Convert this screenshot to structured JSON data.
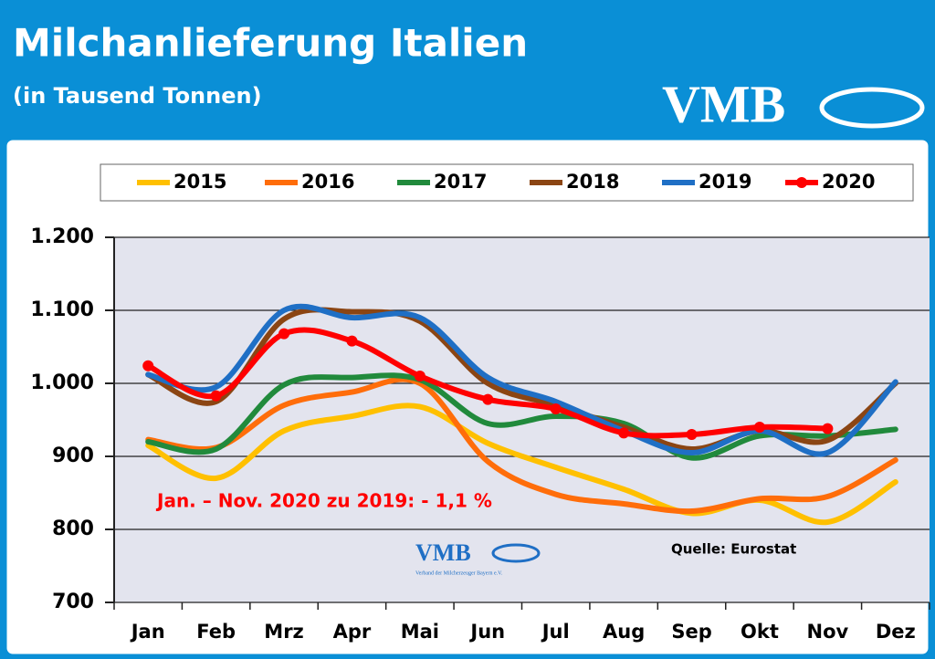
{
  "chart_data": {
    "type": "line",
    "title": "Milchanlieferung Italien",
    "subtitle": "(in Tausend Tonnen)",
    "logo_text": "VMB",
    "logo_subtext": "Verband der Milcherzeuger Bayern e.V.",
    "annotation": "Jan. – Nov. 2020 zu 2019: - 1,1 %",
    "source": "Quelle: Eurostat",
    "categories": [
      "Jan",
      "Feb",
      "Mrz",
      "Apr",
      "Mai",
      "Jun",
      "Jul",
      "Aug",
      "Sep",
      "Okt",
      "Nov",
      "Dez"
    ],
    "series": [
      {
        "name": "2015",
        "color": "#ffc000",
        "values": [
          915,
          870,
          935,
          955,
          968,
          918,
          885,
          855,
          822,
          840,
          810,
          865
        ]
      },
      {
        "name": "2016",
        "color": "#ff6d0a",
        "values": [
          923,
          912,
          970,
          988,
          1000,
          893,
          848,
          835,
          825,
          842,
          845,
          895
        ]
      },
      {
        "name": "2017",
        "color": "#218a3c",
        "values": [
          920,
          910,
          998,
          1008,
          1005,
          945,
          955,
          945,
          898,
          928,
          928,
          937
        ]
      },
      {
        "name": "2018",
        "color": "#8b4513",
        "values": [
          1012,
          975,
          1088,
          1098,
          1085,
          1000,
          970,
          940,
          910,
          935,
          922,
          1000
        ]
      },
      {
        "name": "2019",
        "color": "#1f6fc5",
        "values": [
          1012,
          995,
          1100,
          1090,
          1090,
          1008,
          975,
          935,
          905,
          935,
          905,
          1002
        ]
      },
      {
        "name": "2020",
        "color": "#ff0000",
        "markers": true,
        "values": [
          1024,
          983,
          1068,
          1058,
          1010,
          978,
          965,
          932,
          930,
          940,
          938,
          null
        ]
      }
    ],
    "ylim": [
      700,
      1200
    ],
    "yticks": [
      700,
      800,
      900,
      {
        "value": 1000,
        "label": "1.000"
      },
      {
        "value": 1100,
        "label": "1.100"
      },
      {
        "value": 1200,
        "label": "1.200"
      }
    ],
    "grid": true
  }
}
